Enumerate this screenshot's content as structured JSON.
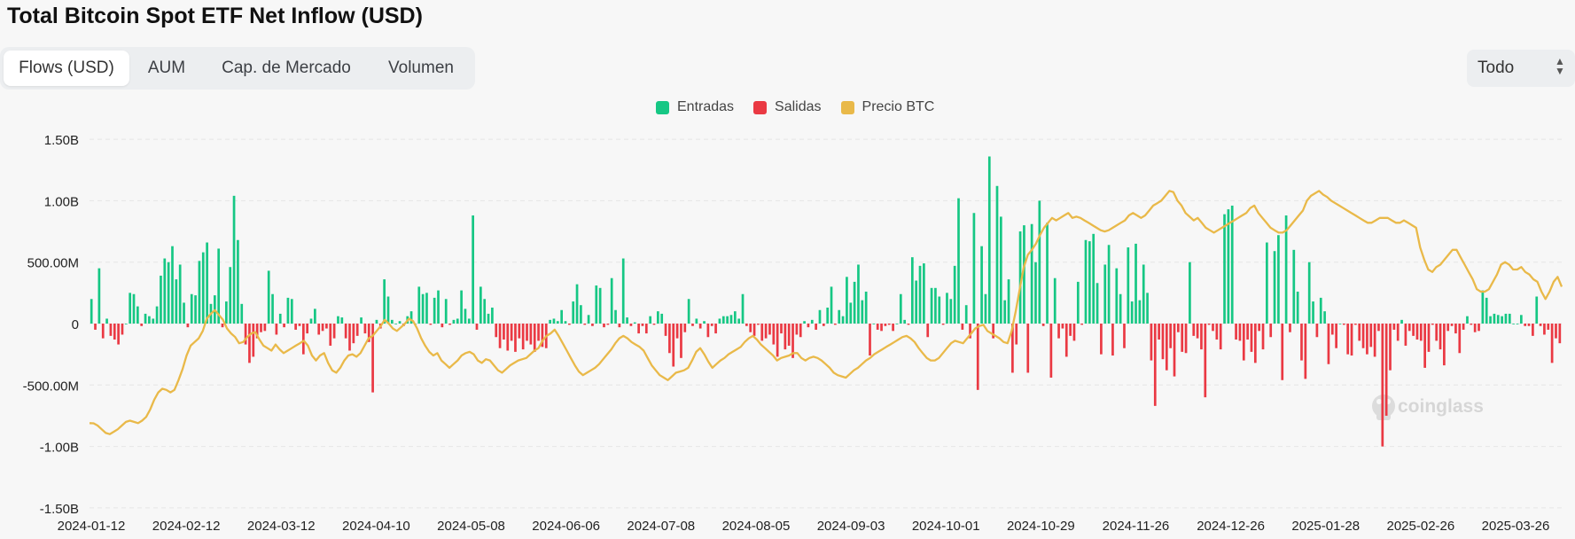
{
  "title": "Total Bitcoin Spot ETF Net Inflow (USD)",
  "tabs": [
    {
      "label": "Flows (USD)",
      "active": true
    },
    {
      "label": "AUM",
      "active": false
    },
    {
      "label": "Cap. de Mercado",
      "active": false
    },
    {
      "label": "Volumen",
      "active": false
    }
  ],
  "range_select": {
    "value": "Todo"
  },
  "legend": [
    {
      "label": "Entradas",
      "color": "#16c784"
    },
    {
      "label": "Salidas",
      "color": "#ea3943"
    },
    {
      "label": "Precio BTC",
      "color": "#e9b949"
    }
  ],
  "watermark": "coinglass",
  "chart_data": {
    "type": "bar",
    "y_ticks": [
      "1.50B",
      "1.00B",
      "500.00M",
      "0",
      "-500.00M",
      "-1.00B",
      "-1.50B"
    ],
    "y_tick_values": [
      1500,
      1000,
      500,
      0,
      -500,
      -1000,
      -1500
    ],
    "ylim": [
      -1500,
      1500
    ],
    "y_unit": "M USD",
    "x_tick_labels": [
      "2024-01-12",
      "2024-02-12",
      "2024-03-12",
      "2024-04-10",
      "2024-05-08",
      "2024-06-06",
      "2024-07-08",
      "2024-08-05",
      "2024-09-03",
      "2024-10-01",
      "2024-10-29",
      "2024-11-26",
      "2024-12-26",
      "2025-01-28",
      "2025-02-26",
      "2025-03-26"
    ],
    "grid": true,
    "legend_position": "top-center",
    "series": [
      {
        "name": "Entradas",
        "color": "#16c784"
      },
      {
        "name": "Salidas",
        "color": "#ea3943"
      },
      {
        "name": "Precio BTC",
        "color": "#e9b949",
        "type": "line"
      }
    ],
    "flows": [
      200,
      -50,
      450,
      -120,
      40,
      -100,
      -130,
      -170,
      -90,
      0,
      250,
      240,
      140,
      -20,
      80,
      60,
      40,
      140,
      390,
      530,
      500,
      630,
      360,
      480,
      170,
      -30,
      240,
      230,
      510,
      580,
      660,
      160,
      230,
      610,
      -30,
      180,
      460,
      1040,
      680,
      160,
      -170,
      -320,
      -270,
      -120,
      -70,
      -60,
      430,
      240,
      -90,
      80,
      -30,
      210,
      200,
      -50,
      -20,
      -250,
      -80,
      40,
      120,
      -90,
      -60,
      -40,
      -180,
      -120,
      60,
      50,
      -120,
      -220,
      -160,
      -100,
      50,
      -80,
      -150,
      -560,
      30,
      -40,
      360,
      220,
      30,
      0,
      20,
      -20,
      60,
      100,
      0,
      300,
      240,
      250,
      -10,
      210,
      270,
      -30,
      200,
      -10,
      30,
      40,
      270,
      120,
      40,
      880,
      -50,
      300,
      200,
      80,
      130,
      -110,
      -200,
      -130,
      -220,
      -140,
      -230,
      -120,
      -210,
      -140,
      -170,
      -230,
      -140,
      -190,
      -200,
      30,
      40,
      20,
      110,
      20,
      -10,
      180,
      320,
      150,
      -10,
      70,
      -20,
      310,
      290,
      -30,
      -10,
      370,
      110,
      -30,
      530,
      50,
      -20,
      10,
      -80,
      -20,
      -80,
      60,
      -10,
      100,
      80,
      -100,
      -240,
      -350,
      -120,
      -280,
      -70,
      200,
      -20,
      40,
      -40,
      20,
      -110,
      -20,
      -80,
      40,
      60,
      60,
      70,
      100,
      40,
      240,
      -20,
      -70,
      -100,
      -10,
      -140,
      -120,
      -90,
      -170,
      -270,
      -80,
      -210,
      -180,
      -280,
      -90,
      -110,
      20,
      -30,
      30,
      -50,
      110,
      -20,
      130,
      300,
      -10,
      110,
      60,
      380,
      170,
      340,
      480,
      190,
      260,
      -260,
      0,
      -50,
      -60,
      -20,
      -10,
      -60,
      0,
      240,
      30,
      -10,
      540,
      350,
      470,
      490,
      -110,
      290,
      290,
      220,
      -10,
      250,
      200,
      470,
      1020,
      -50,
      150,
      -120,
      900,
      -540,
      630,
      240,
      1360,
      -120,
      1120,
      870,
      190,
      360,
      -400,
      -170,
      750,
      800,
      -400,
      810,
      500,
      1000,
      -20,
      820,
      -440,
      370,
      -120,
      -40,
      -270,
      -100,
      -140,
      340,
      -10,
      680,
      670,
      730,
      330,
      -250,
      480,
      640,
      -260,
      450,
      240,
      -200,
      620,
      180,
      650,
      190,
      480,
      250,
      -300,
      -670,
      -130,
      -290,
      -380,
      -200,
      -430,
      -70,
      -230,
      -240,
      500,
      -100,
      -120,
      -210,
      -600,
      -10,
      -60,
      -130,
      -210,
      890,
      930,
      960,
      -130,
      -140,
      -300,
      -130,
      -230,
      -320,
      -60,
      -210,
      660,
      -110,
      590,
      720,
      -460,
      880,
      -70,
      600,
      260,
      -300,
      -450,
      500,
      180,
      -110,
      210,
      100,
      -330,
      -90,
      -200,
      0,
      -10,
      -250,
      -260,
      -10,
      -140,
      -200,
      -250,
      -190,
      -270,
      -60,
      -1000,
      -750,
      -380,
      -50,
      -140,
      30,
      -180,
      -60,
      -100,
      -130,
      -140,
      -360,
      -230,
      -10,
      -140,
      -210,
      -340,
      -60,
      -20,
      -80,
      -240,
      -50,
      60,
      -10,
      -70,
      -60,
      270,
      210,
      60,
      80,
      70,
      60,
      80,
      80,
      0,
      0,
      70,
      -20,
      -20,
      -100,
      220,
      -20,
      -90,
      -50,
      -320,
      -120,
      -160
    ]
  },
  "btc_price": [
    -810,
    -812,
    -830,
    -860,
    -890,
    -900,
    -880,
    -860,
    -830,
    -800,
    -790,
    -800,
    -810,
    -790,
    -760,
    -700,
    -620,
    -560,
    -530,
    -540,
    -560,
    -540,
    -460,
    -370,
    -260,
    -180,
    -150,
    -120,
    -60,
    40,
    80,
    110,
    70,
    30,
    -40,
    -80,
    -110,
    -160,
    -150,
    -110,
    -80,
    -70,
    -130,
    -180,
    -200,
    -220,
    -170,
    -210,
    -240,
    -220,
    -200,
    -180,
    -160,
    -140,
    -180,
    -260,
    -300,
    -260,
    -240,
    -320,
    -380,
    -400,
    -360,
    -300,
    -260,
    -250,
    -270,
    -240,
    -180,
    -120,
    -100,
    -60,
    -20,
    30,
    0,
    -40,
    -60,
    -30,
    0,
    40,
    20,
    -40,
    -120,
    -180,
    -230,
    -260,
    -240,
    -300,
    -330,
    -360,
    -330,
    -300,
    -260,
    -240,
    -230,
    -250,
    -300,
    -320,
    -290,
    -300,
    -340,
    -380,
    -400,
    -370,
    -340,
    -320,
    -300,
    -290,
    -280,
    -250,
    -220,
    -200,
    -140,
    -100,
    -80,
    -50,
    -100,
    -160,
    -220,
    -280,
    -340,
    -390,
    -420,
    -400,
    -380,
    -360,
    -330,
    -290,
    -250,
    -210,
    -160,
    -120,
    -100,
    -120,
    -150,
    -170,
    -190,
    -220,
    -280,
    -340,
    -380,
    -420,
    -440,
    -460,
    -430,
    -400,
    -390,
    -380,
    -360,
    -300,
    -230,
    -200,
    -250,
    -310,
    -360,
    -330,
    -300,
    -280,
    -250,
    -230,
    -210,
    -190,
    -150,
    -120,
    -100,
    -130,
    -170,
    -200,
    -230,
    -260,
    -300,
    -280,
    -270,
    -260,
    -240,
    -240,
    -280,
    -300,
    -280,
    -270,
    -280,
    -300,
    -330,
    -360,
    -400,
    -420,
    -430,
    -440,
    -410,
    -380,
    -360,
    -330,
    -300,
    -280,
    -250,
    -230,
    -210,
    -190,
    -170,
    -150,
    -130,
    -110,
    -100,
    -120,
    -150,
    -200,
    -240,
    -280,
    -300,
    -300,
    -280,
    -240,
    -200,
    -160,
    -140,
    -150,
    -160,
    -120,
    -80,
    -40,
    -20,
    -10,
    -60,
    -80,
    -100,
    -120,
    -150,
    -160,
    -60,
    100,
    280,
    460,
    560,
    600,
    650,
    720,
    780,
    820,
    860,
    840,
    860,
    880,
    900,
    860,
    870,
    860,
    840,
    820,
    800,
    780,
    760,
    750,
    760,
    780,
    800,
    820,
    840,
    880,
    900,
    880,
    860,
    880,
    920,
    960,
    980,
    1000,
    1040,
    1080,
    1070,
    1000,
    960,
    900,
    870,
    840,
    860,
    820,
    780,
    760,
    740,
    760,
    780,
    800,
    820,
    840,
    860,
    880,
    900,
    940,
    960,
    900,
    860,
    820,
    780,
    760,
    740,
    740,
    760,
    800,
    840,
    880,
    920,
    1000,
    1040,
    1060,
    1080,
    1050,
    1030,
    1000,
    980,
    960,
    940,
    920,
    900,
    880,
    860,
    840,
    820,
    820,
    840,
    860,
    860,
    860,
    840,
    820,
    820,
    840,
    820,
    800,
    780,
    620,
    520,
    440,
    420,
    460,
    480,
    520,
    560,
    600,
    600,
    540,
    480,
    420,
    360,
    280,
    260,
    260,
    280,
    340,
    400,
    480,
    500,
    480,
    440,
    440,
    460,
    420,
    400,
    360,
    340,
    260,
    200,
    260,
    340,
    380,
    300
  ]
}
